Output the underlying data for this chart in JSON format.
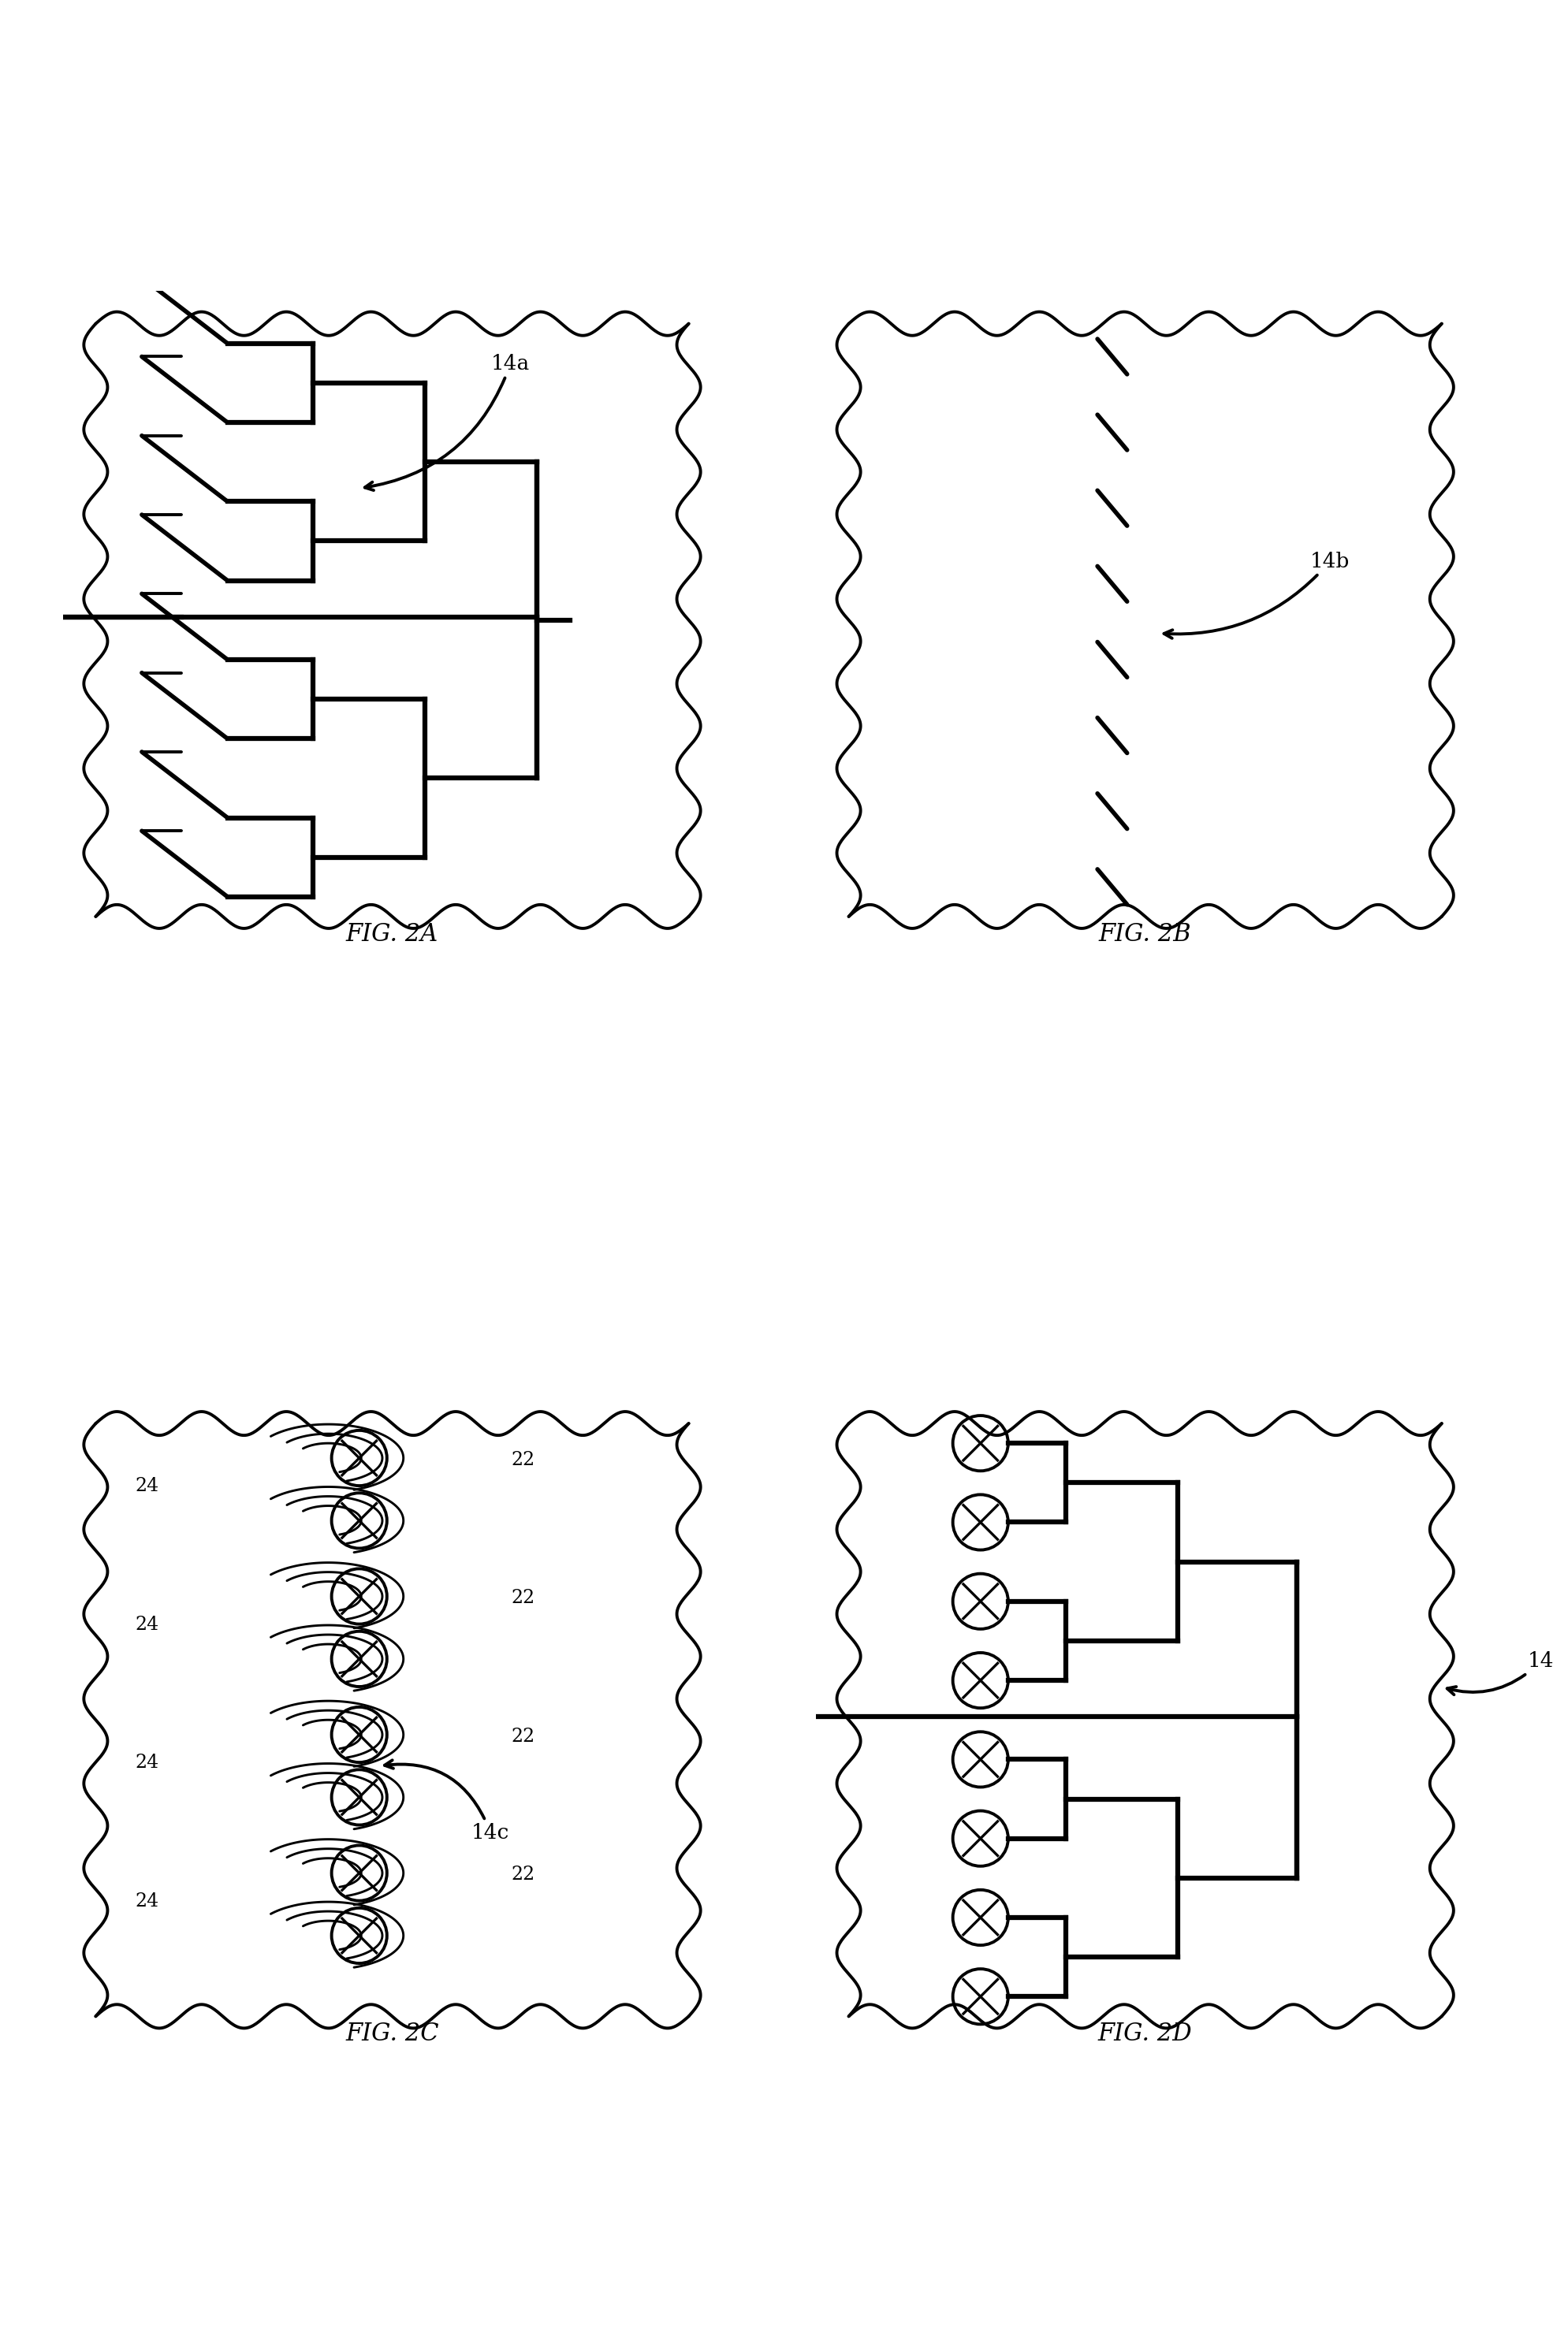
{
  "fig_labels": [
    "FIG. 2A",
    "FIG. 2B",
    "FIG. 2C",
    "FIG. 2D"
  ],
  "line_color": "#000000",
  "bg_color": "#ffffff",
  "lw_thin": 1.8,
  "lw_med": 2.8,
  "lw_thick": 4.5,
  "font_size_fig": 20,
  "font_size_label": 16,
  "wavy_amp": 0.18,
  "wavy_n": 7
}
